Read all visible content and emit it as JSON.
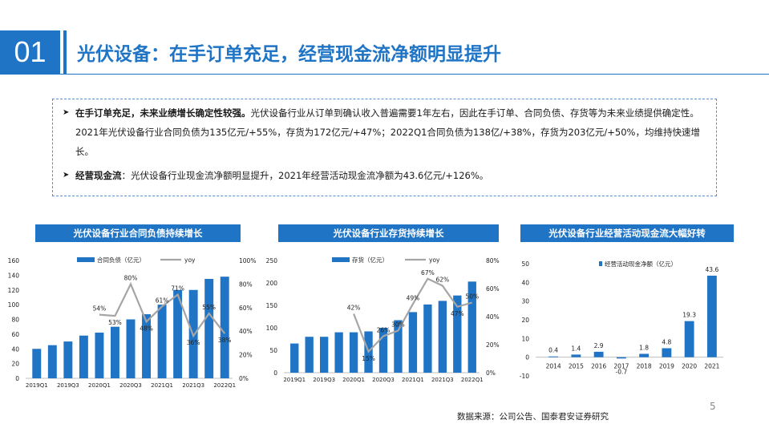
{
  "header": {
    "section_number": "01",
    "title": "光伏设备：在手订单充足，经营现金流净额明显提升"
  },
  "summary": {
    "bullet_icon": "arrow-right-bullet-icon",
    "points": [
      {
        "bold": "在手订单充足，未来业绩增长确定性较强。",
        "text": "光伏设备行业从订单到确认收入普遍需要1年左右，因此在手订单、合同负债、存货等为未来业绩提供确定性。2021年光伏设备行业合同负债为135亿元/+55%，存货为172亿元/+47%；2022Q1合同负债为138亿/+38%，存货为203亿元/+50%，均维持快速增长。"
      },
      {
        "bold": "经营现金流",
        "text": "：光伏设备行业现金流净额明显提升，2021年经营活动现金流净额为43.6亿元/+126%。"
      }
    ]
  },
  "colors": {
    "brand": "#1f74c5",
    "bar": "#1f74c5",
    "line": "#a5a5a5"
  },
  "chart_data": [
    {
      "type": "bar",
      "title": "光伏设备行业合同负债持续增长",
      "categories": [
        "2019Q1",
        "2019Q2",
        "2019Q3",
        "2019Q4",
        "2020Q1",
        "2020Q2",
        "2020Q3",
        "2020Q4",
        "2021Q1",
        "2021Q2",
        "2021Q3",
        "2021Q4",
        "2022Q1"
      ],
      "x_tick_labels": [
        "2019Q1",
        "2019Q3",
        "2020Q1",
        "2020Q3",
        "2021Q1",
        "2021Q3",
        "2022Q1"
      ],
      "series": [
        {
          "name": "合同负债（亿元）",
          "axis": "left",
          "values": [
            40,
            45,
            50,
            58,
            62,
            70,
            80,
            87,
            100,
            120,
            120,
            135,
            138
          ]
        },
        {
          "name": "yoy",
          "axis": "right",
          "type": "line",
          "values": [
            null,
            null,
            null,
            null,
            54,
            53,
            80,
            48,
            61,
            71,
            36,
            55,
            38
          ]
        }
      ],
      "data_labels": [
        "54%",
        "53%",
        "80%",
        "48%",
        "61%",
        "71%",
        "36%",
        "55%",
        "38%"
      ],
      "left_ticks": [
        "160",
        "140",
        "120",
        "100",
        "80",
        "60",
        "40",
        "20",
        "0"
      ],
      "right_ticks": [
        "100%",
        "80%",
        "60%",
        "40%",
        "20%",
        "0%"
      ],
      "ylim": [
        0,
        160
      ],
      "y2lim": [
        0,
        100
      ],
      "legend": "top"
    },
    {
      "type": "bar",
      "title": "光伏设备行业存货持续增长",
      "categories": [
        "2019Q1",
        "2019Q2",
        "2019Q3",
        "2019Q4",
        "2020Q1",
        "2020Q2",
        "2020Q3",
        "2020Q4",
        "2021Q1",
        "2021Q2",
        "2021Q3",
        "2021Q4",
        "2022Q1"
      ],
      "x_tick_labels": [
        "2019Q1",
        "2019Q3",
        "2020Q1",
        "2020Q3",
        "2021Q1",
        "2021Q3",
        "2022Q1"
      ],
      "series": [
        {
          "name": "存货（亿元）",
          "axis": "left",
          "values": [
            65,
            80,
            80,
            90,
            90,
            92,
            100,
            117,
            135,
            152,
            160,
            172,
            203
          ]
        },
        {
          "name": "yoy",
          "axis": "right",
          "type": "line",
          "values": [
            null,
            null,
            null,
            null,
            42,
            15,
            26,
            30,
            49,
            67,
            62,
            47,
            50
          ]
        }
      ],
      "data_labels": [
        "42%",
        "15%",
        "26%",
        "30%",
        "49%",
        "67%",
        "62%",
        "47%",
        "50%"
      ],
      "left_ticks": [
        "250",
        "200",
        "150",
        "100",
        "50",
        "0"
      ],
      "right_ticks": [
        "80%",
        "60%",
        "40%",
        "20%",
        "0%"
      ],
      "ylim": [
        0,
        250
      ],
      "y2lim": [
        0,
        80
      ],
      "legend": "top"
    },
    {
      "type": "bar",
      "title": "光伏设备行业经营活动现金流大幅好转",
      "categories": [
        "2014",
        "2015",
        "2016",
        "2017",
        "2018",
        "2019",
        "2020",
        "2021"
      ],
      "series": [
        {
          "name": "经营活动现金净额（亿元）",
          "values": [
            0.4,
            1.4,
            2.9,
            -0.7,
            1.8,
            4.8,
            19.3,
            43.6
          ]
        }
      ],
      "data_labels": [
        "0.4",
        "1.4",
        "2.9",
        "-0.7",
        "1.8",
        "4.8",
        "19.3",
        "43.6"
      ],
      "left_ticks": [
        "50",
        "40",
        "30",
        "20",
        "10",
        "0",
        "-10"
      ],
      "ylim": [
        -10,
        50
      ],
      "legend": "top-left"
    }
  ],
  "footer": {
    "page_number": "5",
    "source": "数据来源：公司公告、国泰君安证券研究"
  }
}
